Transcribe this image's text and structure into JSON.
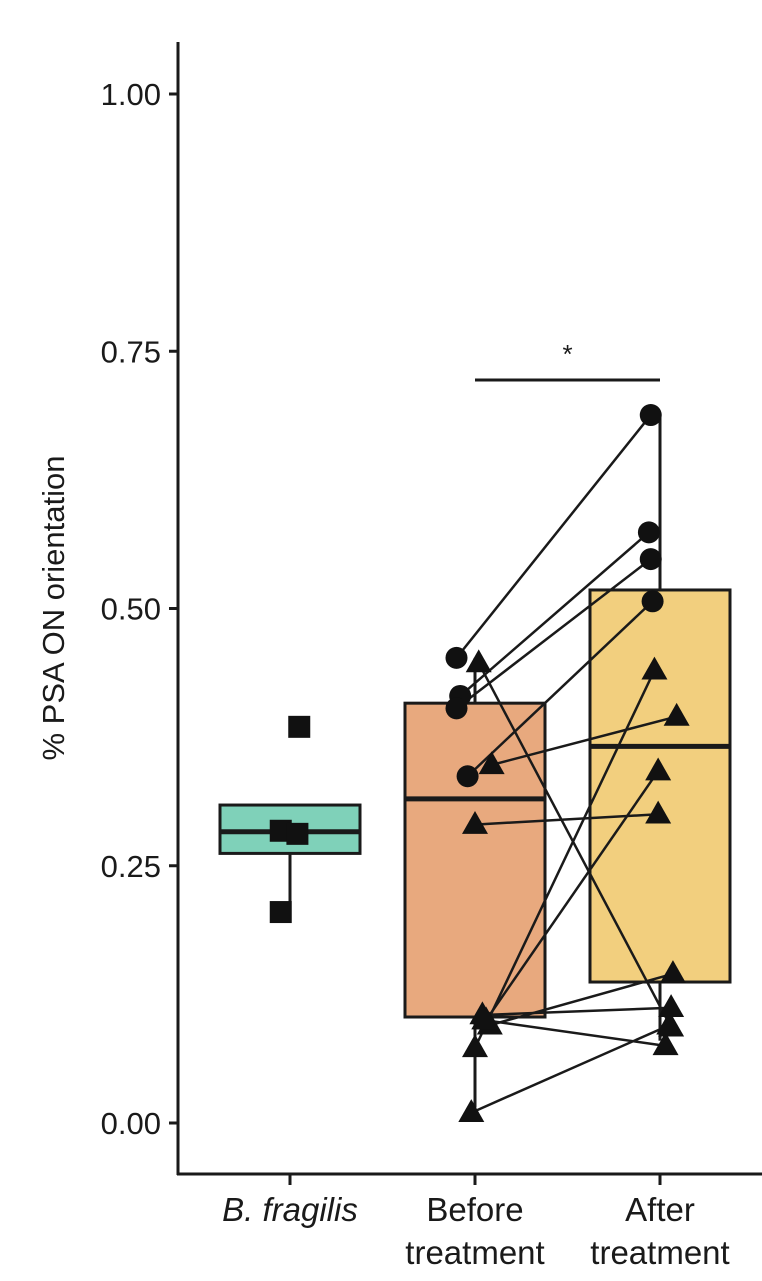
{
  "chart_data": {
    "type": "box",
    "ylabel": "% PSA ON orientation",
    "xlabel": "",
    "ylim": [
      -0.05,
      1.05
    ],
    "yticks": [
      0.0,
      0.25,
      0.5,
      0.75,
      1.0
    ],
    "ytick_labels": [
      "0.00",
      "0.25",
      "0.50",
      "0.75",
      "1.00"
    ],
    "grid": false,
    "legend": "none",
    "categories": [
      {
        "lines": [
          "B. fragilis"
        ],
        "italic": true
      },
      {
        "lines": [
          "Before",
          "treatment"
        ],
        "italic": false
      },
      {
        "lines": [
          "After",
          "treatment"
        ],
        "italic": false
      }
    ],
    "boxes": [
      {
        "group": 0,
        "q1": 0.262,
        "median": 0.283,
        "q3": 0.309,
        "whisker_low": 0.205,
        "whisker_high": 0.309,
        "color": "#7fd1b9"
      },
      {
        "group": 1,
        "q1": 0.103,
        "median": 0.315,
        "q3": 0.408,
        "whisker_low": 0.015,
        "whisker_high": 0.452,
        "color": "#e8a97e"
      },
      {
        "group": 2,
        "q1": 0.137,
        "median": 0.366,
        "q3": 0.518,
        "whisker_low": 0.08,
        "whisker_high": 0.688,
        "color": "#f2cf7e"
      }
    ],
    "points": [
      {
        "group": 0,
        "dx": 0.05,
        "y": 0.385,
        "shape": "square"
      },
      {
        "group": 0,
        "dx": -0.05,
        "y": 0.284,
        "shape": "square"
      },
      {
        "group": 0,
        "dx": 0.04,
        "y": 0.281,
        "shape": "square"
      },
      {
        "group": 0,
        "dx": -0.05,
        "y": 0.205,
        "shape": "square"
      }
    ],
    "pairs": [
      {
        "shape": "circle",
        "before": 0.452,
        "before_dx": -0.1,
        "after": 0.688,
        "after_dx": -0.05
      },
      {
        "shape": "circle",
        "before": 0.415,
        "before_dx": -0.08,
        "after": 0.574,
        "after_dx": -0.06
      },
      {
        "shape": "circle",
        "before": 0.403,
        "before_dx": -0.1,
        "after": 0.548,
        "after_dx": -0.05
      },
      {
        "shape": "circle",
        "before": 0.337,
        "before_dx": -0.04,
        "after": 0.507,
        "after_dx": -0.04
      },
      {
        "shape": "triangle",
        "before": 0.447,
        "before_dx": 0.02,
        "after": 0.093,
        "after_dx": 0.06
      },
      {
        "shape": "triangle",
        "before": 0.348,
        "before_dx": 0.09,
        "after": 0.395,
        "after_dx": 0.09
      },
      {
        "shape": "triangle",
        "before": 0.29,
        "before_dx": 0.0,
        "after": 0.3,
        "after_dx": -0.01
      },
      {
        "shape": "triangle",
        "before": 0.105,
        "before_dx": 0.04,
        "after": 0.112,
        "after_dx": 0.06
      },
      {
        "shape": "triangle",
        "before": 0.1,
        "before_dx": 0.06,
        "after": 0.342,
        "after_dx": -0.01
      },
      {
        "shape": "triangle",
        "before": 0.095,
        "before_dx": 0.08,
        "after": 0.145,
        "after_dx": 0.07
      },
      {
        "shape": "triangle",
        "before": 0.1,
        "before_dx": 0.05,
        "after": 0.075,
        "after_dx": 0.03
      },
      {
        "shape": "triangle",
        "before": 0.073,
        "before_dx": 0.0,
        "after": 0.44,
        "after_dx": -0.03
      },
      {
        "shape": "triangle",
        "before": 0.01,
        "before_dx": -0.02,
        "after": 0.095,
        "after_dx": 0.05
      }
    ],
    "significance": {
      "from_group": 1,
      "to_group": 2,
      "y": 0.722,
      "label": "*"
    }
  }
}
